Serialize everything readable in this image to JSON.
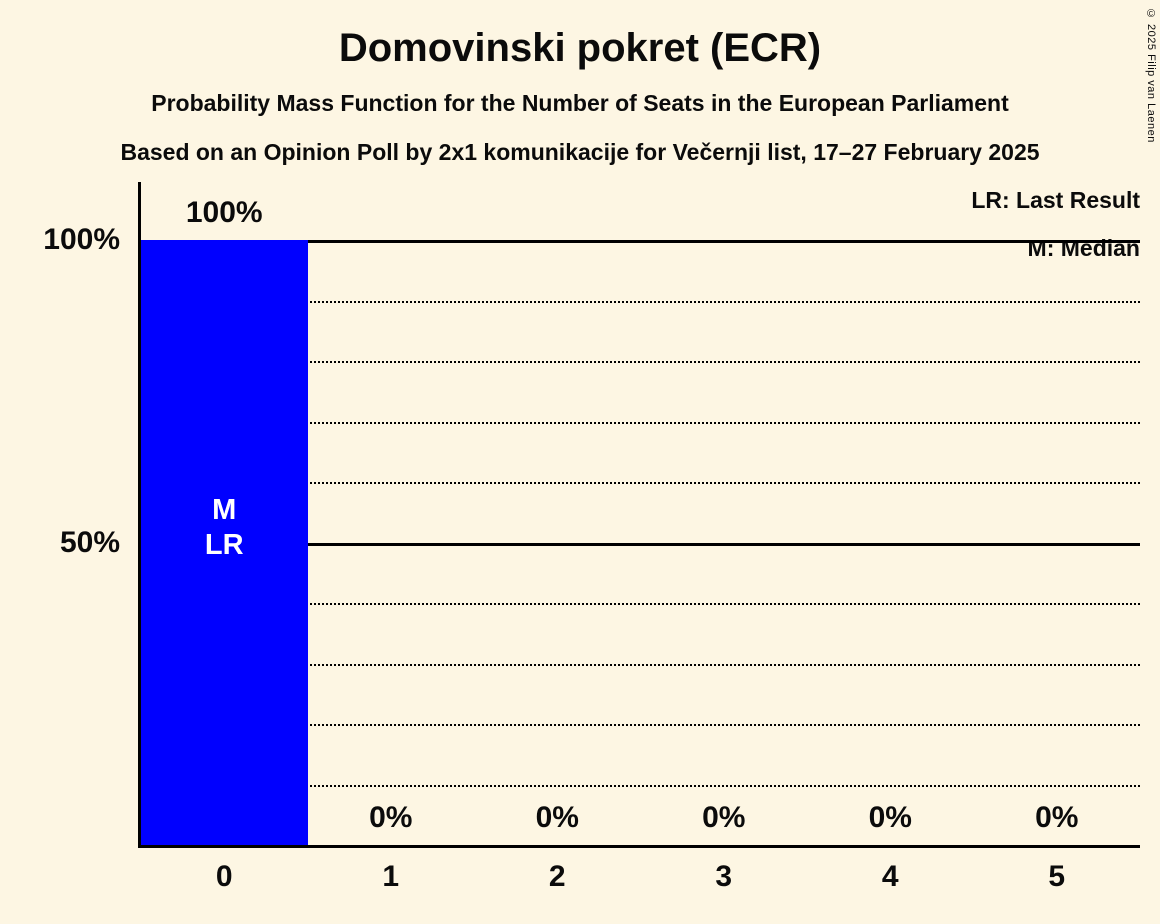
{
  "title": "Domovinski pokret (ECR)",
  "subtitle": "Probability Mass Function for the Number of Seats in the European Parliament",
  "source_line": "Based on an Opinion Poll by 2x1 komunikacije for Večernji list, 17–27 February 2025",
  "copyright": "© 2025 Filip van Laenen",
  "legend": {
    "last_result": "LR: Last Result",
    "median": "M: Median"
  },
  "colors": {
    "background": "#fdf6e3",
    "bar": "#0000ff",
    "text": "#0b0b0b",
    "bar_label": "#ffffff"
  },
  "chart_data": {
    "type": "bar",
    "title": "Domovinski pokret (ECR)",
    "categories": [
      "0",
      "1",
      "2",
      "3",
      "4",
      "5"
    ],
    "values": [
      100,
      0,
      0,
      0,
      0,
      0
    ],
    "value_labels": [
      "100%",
      "0%",
      "0%",
      "0%",
      "0%",
      "0%"
    ],
    "bar_annotations": [
      "M\nLR",
      "",
      "",
      "",
      "",
      ""
    ],
    "xlabel": "",
    "ylabel": "",
    "ylim": [
      0,
      100
    ],
    "yticks": [
      {
        "value": 100,
        "label": "100%"
      },
      {
        "value": 50,
        "label": "50%"
      }
    ],
    "gridlines": {
      "solid": [
        50,
        100
      ],
      "dotted": [
        10,
        20,
        30,
        40,
        60,
        70,
        80,
        90
      ]
    },
    "legend_position": "top-right"
  }
}
